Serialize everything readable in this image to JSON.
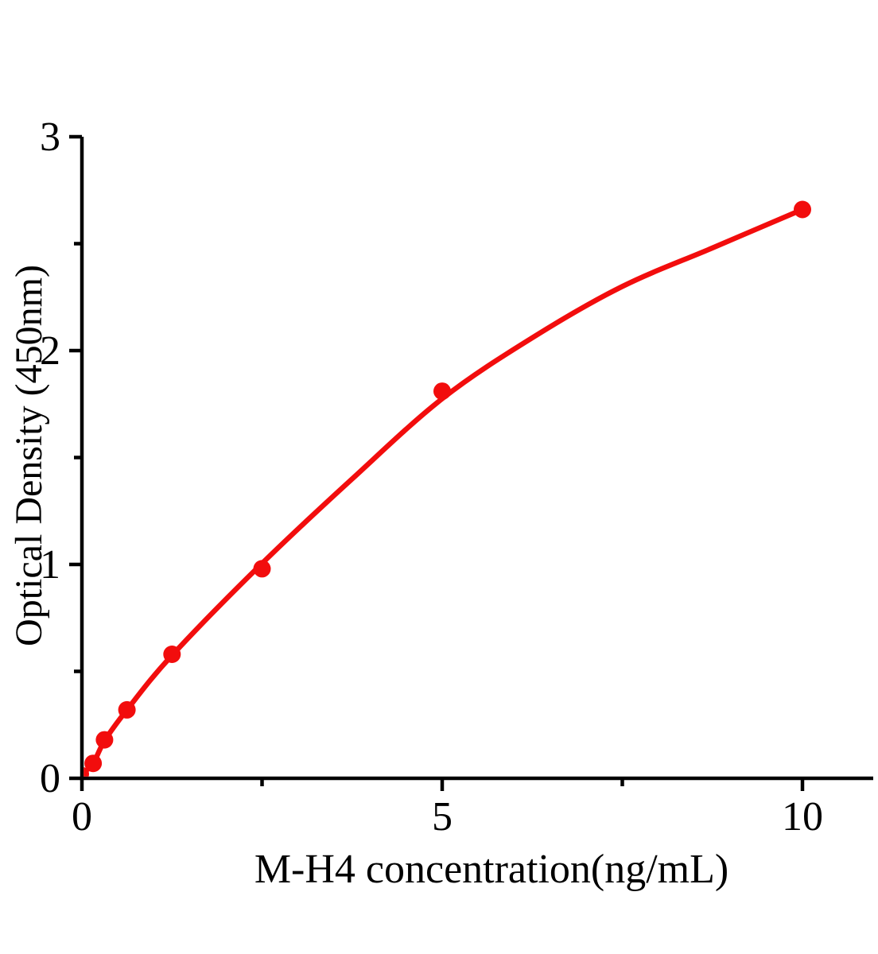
{
  "figure": {
    "background_color": "#ffffff",
    "axis_color": "#000000",
    "accent_color": "#f20d0d"
  },
  "chart_data": {
    "type": "scatter",
    "xlabel": "M-H4 concentration(ng/mL)",
    "ylabel": "Optical Density（450nm）",
    "xlim": [
      0,
      11
    ],
    "ylim": [
      0,
      3
    ],
    "grid": false,
    "legend": "none",
    "x_axis": {
      "major_ticks": [
        {
          "value": 0,
          "label": "0"
        },
        {
          "value": 5,
          "label": "5"
        },
        {
          "value": 10,
          "label": "10"
        }
      ],
      "minor_ticks": [
        2.5,
        7.5
      ]
    },
    "y_axis": {
      "major_ticks": [
        {
          "value": 0,
          "label": "0"
        },
        {
          "value": 1,
          "label": "1"
        },
        {
          "value": 2,
          "label": "2"
        },
        {
          "value": 3,
          "label": "3"
        }
      ],
      "minor_ticks": [
        0.5,
        1.5,
        2.5
      ]
    },
    "series": [
      {
        "marker": "circle",
        "marker_color": "#f20d0d",
        "line_color": "#f20d0d",
        "points": [
          {
            "x": 0,
            "y": 0.02
          },
          {
            "x": 0.156,
            "y": 0.07
          },
          {
            "x": 0.313,
            "y": 0.18
          },
          {
            "x": 0.625,
            "y": 0.32
          },
          {
            "x": 1.25,
            "y": 0.58
          },
          {
            "x": 2.5,
            "y": 0.98
          },
          {
            "x": 5,
            "y": 1.81
          },
          {
            "x": 10,
            "y": 2.66
          }
        ],
        "fit_curve": [
          [
            0,
            0.02
          ],
          [
            0.156,
            0.07
          ],
          [
            0.313,
            0.175
          ],
          [
            0.625,
            0.32
          ],
          [
            1.25,
            0.575
          ],
          [
            2.5,
            1.005
          ],
          [
            3.75,
            1.4
          ],
          [
            5,
            1.775
          ],
          [
            6.25,
            2.06
          ],
          [
            7.5,
            2.3
          ],
          [
            8.75,
            2.48
          ],
          [
            10,
            2.66
          ]
        ]
      }
    ]
  }
}
